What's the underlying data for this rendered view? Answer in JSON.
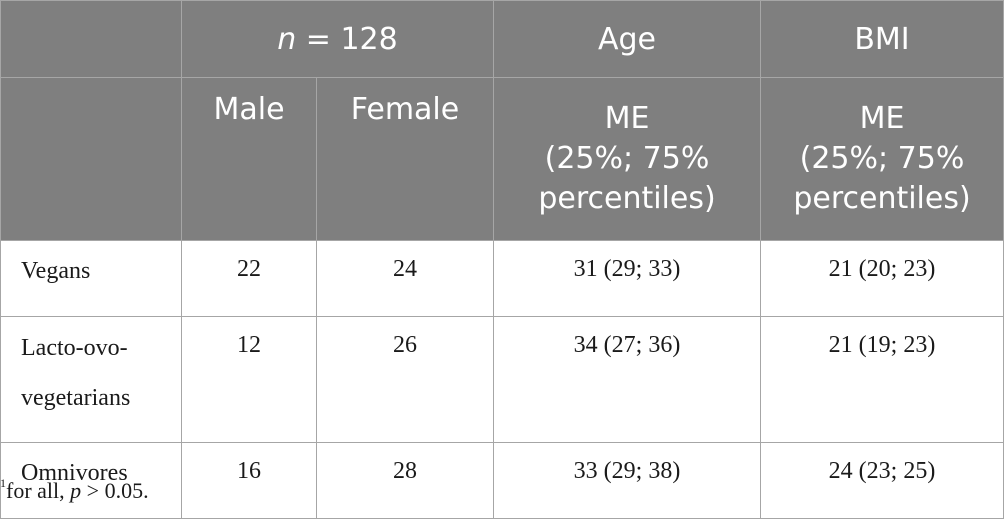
{
  "header_row1": {
    "blank": "",
    "n_prefix": "n",
    "n_suffix": " = 128",
    "age": "Age",
    "bmi": "BMI"
  },
  "header_row2": {
    "male": "Male",
    "female": "Female",
    "age_stat_line1": "ME",
    "age_stat_line2": "(25%; 75%",
    "age_stat_line3": "percentiles)",
    "bmi_stat_line1": "ME",
    "bmi_stat_line2": "(25%; 75%",
    "bmi_stat_line3": "percentiles)"
  },
  "rows": [
    {
      "group": "Vegans",
      "male": "22",
      "female": "24",
      "age": "31 (29; 33)",
      "bmi": "21 (20; 23)"
    },
    {
      "group_line1": "Lacto-ovo-",
      "group_line2": "vegetarians",
      "male": "12",
      "female": "26",
      "age": "34 (27; 36)",
      "bmi": "21 (19; 23)"
    },
    {
      "group": "Omnivores",
      "male": "16",
      "female": "28",
      "age": "33 (29; 38)",
      "bmi": "24 (23; 25)"
    }
  ],
  "footnote": {
    "marker": "1",
    "text_prefix": "for all, ",
    "p": "p",
    "text_suffix": " > 0.05."
  }
}
